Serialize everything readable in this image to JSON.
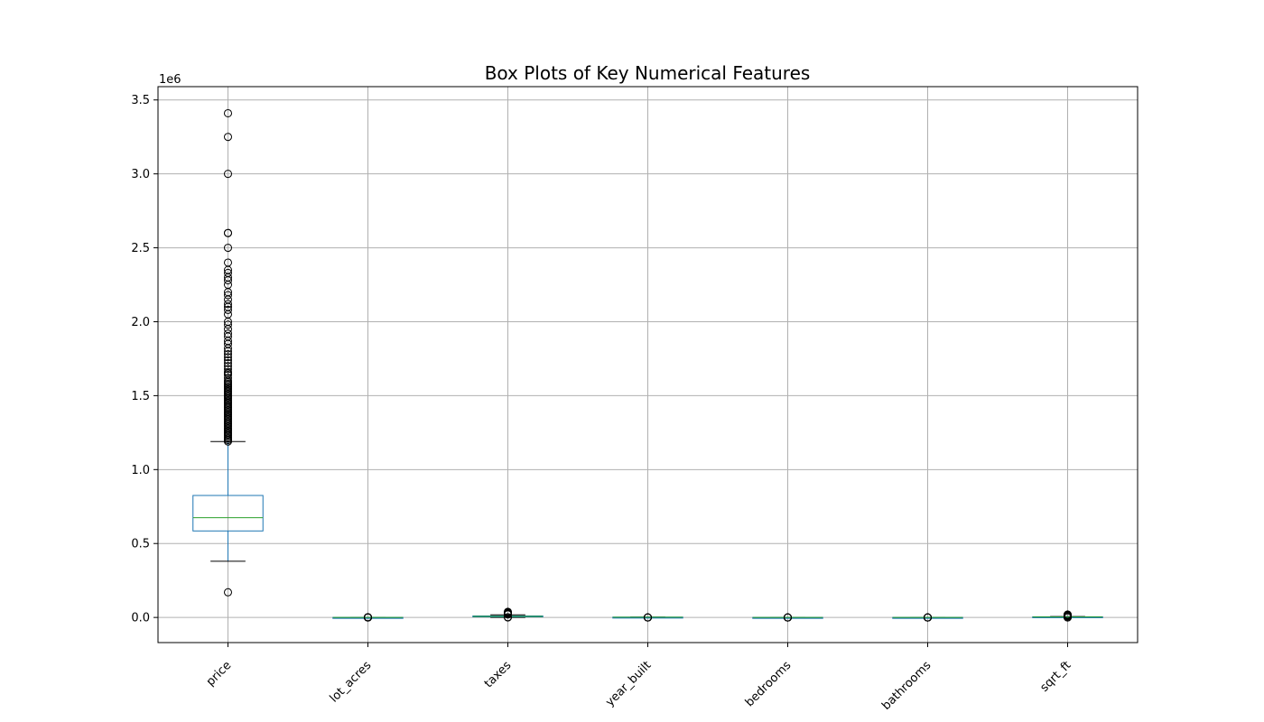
{
  "chart_data": {
    "type": "box",
    "title": "Box Plots of Key Numerical Features",
    "xlabel": "",
    "ylabel": "",
    "y_offset_label": "1e6",
    "ylim": [
      -170000,
      3590000
    ],
    "yticks": [
      0.0,
      0.5,
      1.0,
      1.5,
      2.0,
      2.5,
      3.0,
      3.5
    ],
    "ytick_labels": [
      "0.0",
      "0.5",
      "1.0",
      "1.5",
      "2.0",
      "2.5",
      "3.0",
      "3.5"
    ],
    "categories": [
      "price",
      "lot_acres",
      "taxes",
      "year_built",
      "bedrooms",
      "bathrooms",
      "sqrt_ft"
    ],
    "grid": true,
    "colors": {
      "box": "#1f77b4",
      "median": "#2ca02c",
      "whisker_cap": "#000000",
      "grid": "#b0b0b0"
    },
    "boxes": [
      {
        "name": "price",
        "whisker_low": 380000,
        "q1": 585000,
        "median": 675000,
        "q3": 825000,
        "whisker_high": 1190000,
        "outliers": [
          170000,
          1190000,
          1200000,
          1210000,
          1220000,
          1230000,
          1240000,
          1250000,
          1260000,
          1270000,
          1280000,
          1290000,
          1300000,
          1310000,
          1320000,
          1330000,
          1340000,
          1350000,
          1360000,
          1370000,
          1380000,
          1390000,
          1400000,
          1410000,
          1420000,
          1430000,
          1440000,
          1450000,
          1460000,
          1470000,
          1480000,
          1490000,
          1500000,
          1510000,
          1520000,
          1530000,
          1540000,
          1550000,
          1560000,
          1570000,
          1580000,
          1590000,
          1600000,
          1620000,
          1640000,
          1650000,
          1660000,
          1680000,
          1700000,
          1720000,
          1740000,
          1760000,
          1780000,
          1800000,
          1820000,
          1850000,
          1870000,
          1900000,
          1920000,
          1950000,
          1980000,
          2000000,
          2050000,
          2080000,
          2100000,
          2120000,
          2150000,
          2180000,
          2200000,
          2250000,
          2280000,
          2300000,
          2330000,
          2350000,
          2400000,
          2500000,
          2600000,
          2600000,
          3000000,
          3250000,
          3410000
        ]
      },
      {
        "name": "lot_acres",
        "whisker_low": 0,
        "q1": 0,
        "median": 1,
        "q3": 2,
        "whisker_high": 4,
        "outliers": [
          10,
          30,
          50,
          100,
          500,
          1000,
          2000
        ]
      },
      {
        "name": "taxes",
        "whisker_low": 0,
        "q1": 5000,
        "median": 7000,
        "q3": 10000,
        "whisker_high": 18000,
        "outliers": [
          0,
          2000,
          20000,
          22000,
          25000,
          28000,
          30000,
          32000,
          35000,
          38000
        ]
      },
      {
        "name": "year_built",
        "whisker_low": 1900,
        "q1": 1980,
        "median": 1995,
        "q3": 2006,
        "whisker_high": 2019,
        "outliers": [
          0,
          0,
          0,
          100,
          500
        ]
      },
      {
        "name": "bedrooms",
        "whisker_low": 2,
        "q1": 3,
        "median": 4,
        "q3": 4,
        "whisker_high": 6,
        "outliers": [
          0,
          8,
          10,
          15,
          20,
          30
        ]
      },
      {
        "name": "bathrooms",
        "whisker_low": 1,
        "q1": 3,
        "median": 4,
        "q3": 4,
        "whisker_high": 6,
        "outliers": [
          0,
          8,
          10,
          15,
          20,
          30,
          36
        ]
      },
      {
        "name": "sqrt_ft",
        "whisker_low": 1000,
        "q1": 3000,
        "median": 3500,
        "q3": 4300,
        "whisker_high": 6500,
        "outliers": [
          0,
          500,
          7000,
          8000,
          9000,
          10000,
          12000,
          15000,
          18000,
          20000
        ]
      }
    ]
  }
}
